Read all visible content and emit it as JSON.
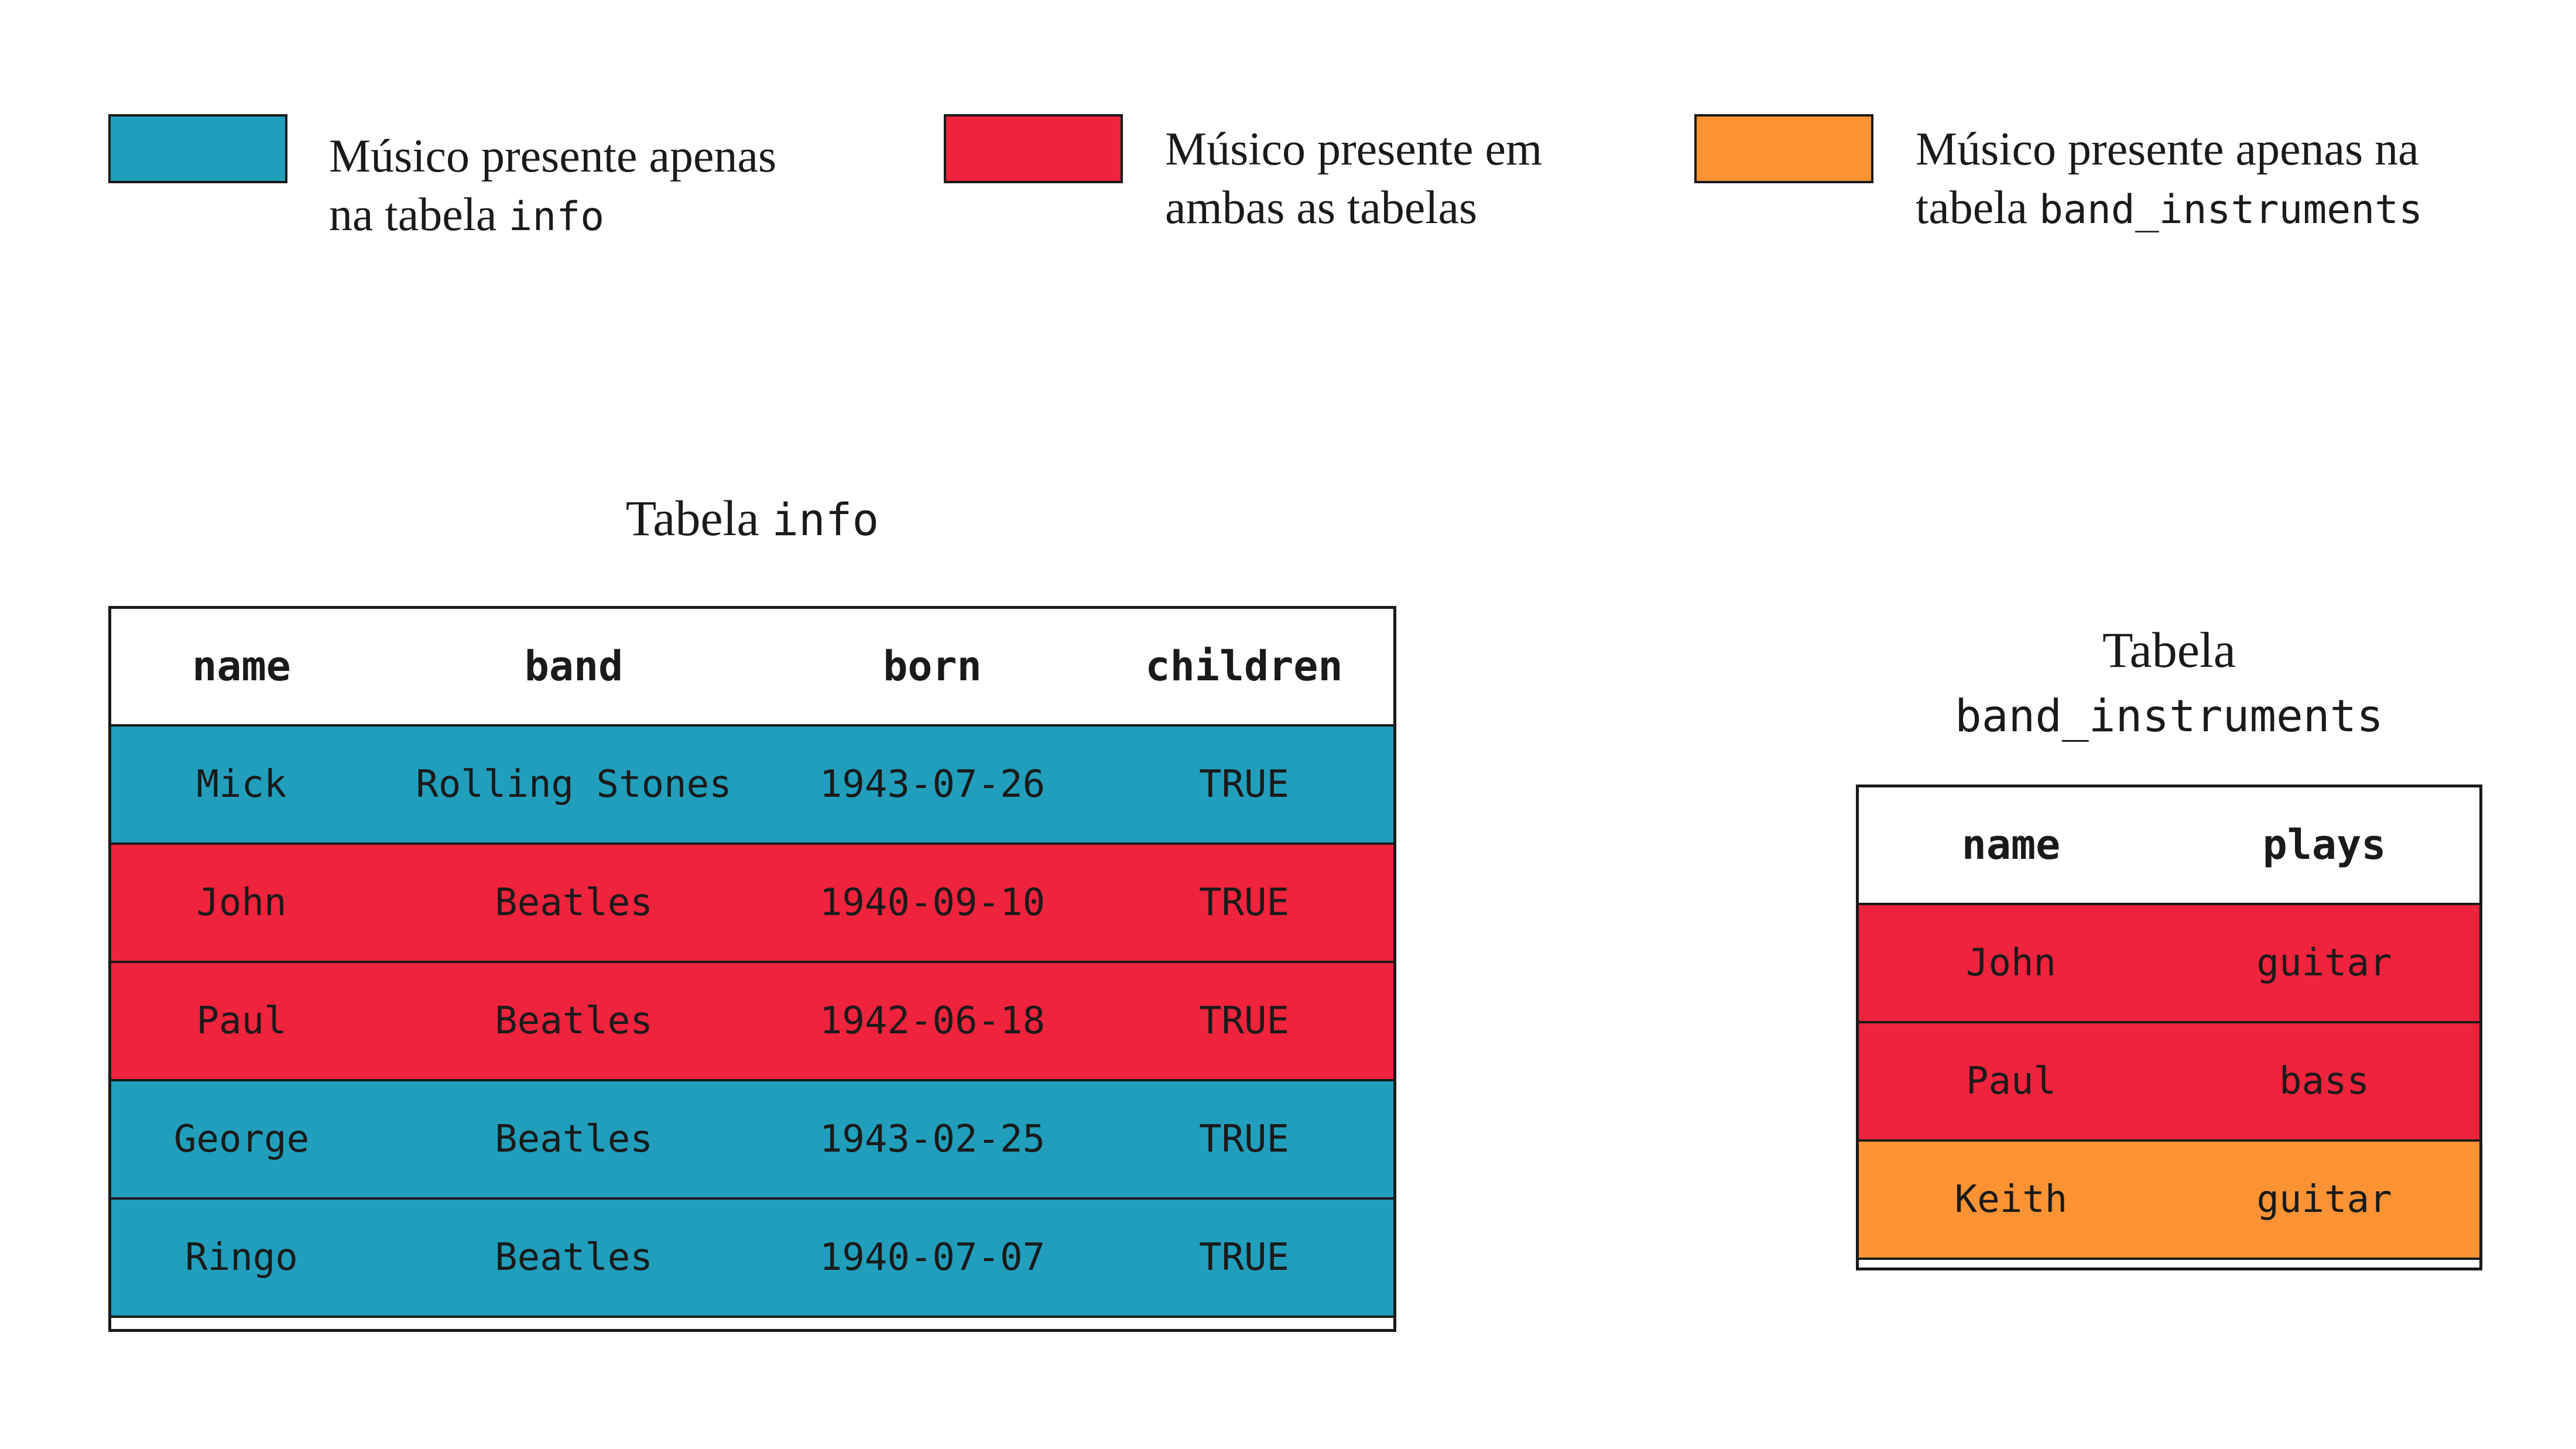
{
  "colors": {
    "info_only": "#219EBC",
    "both": "#EF233C",
    "band_instruments_only": "#FB9335"
  },
  "legend": [
    {
      "color_key": "info_only",
      "text_before": "Músico presente apenas",
      "text_line2": "na tabela ",
      "code": "info"
    },
    {
      "color_key": "both",
      "text_before": "Músico presente em",
      "text_line2": "ambas as tabelas",
      "code": ""
    },
    {
      "color_key": "band_instruments_only",
      "text_before": "Músico presente apenas na",
      "text_line2": "tabela ",
      "code": "band_instruments"
    }
  ],
  "info_table": {
    "title_prefix": "Tabela ",
    "title_code": "info",
    "headers": [
      "name",
      "band",
      "born",
      "children"
    ],
    "rows": [
      {
        "cells": [
          "Mick",
          "Rolling Stones",
          "1943-07-26",
          "TRUE"
        ],
        "color_key": "info_only"
      },
      {
        "cells": [
          "John",
          "Beatles",
          "1940-09-10",
          "TRUE"
        ],
        "color_key": "both"
      },
      {
        "cells": [
          "Paul",
          "Beatles",
          "1942-06-18",
          "TRUE"
        ],
        "color_key": "both"
      },
      {
        "cells": [
          "George",
          "Beatles",
          "1943-02-25",
          "TRUE"
        ],
        "color_key": "info_only"
      },
      {
        "cells": [
          "Ringo",
          "Beatles",
          "1940-07-07",
          "TRUE"
        ],
        "color_key": "info_only"
      }
    ]
  },
  "band_instruments_table": {
    "title_prefix": "Tabela",
    "title_code": "band_instruments",
    "headers": [
      "name",
      "plays"
    ],
    "rows": [
      {
        "cells": [
          "John",
          "guitar"
        ],
        "color_key": "both"
      },
      {
        "cells": [
          "Paul",
          "bass"
        ],
        "color_key": "both"
      },
      {
        "cells": [
          "Keith",
          "guitar"
        ],
        "color_key": "band_instruments_only"
      }
    ]
  }
}
